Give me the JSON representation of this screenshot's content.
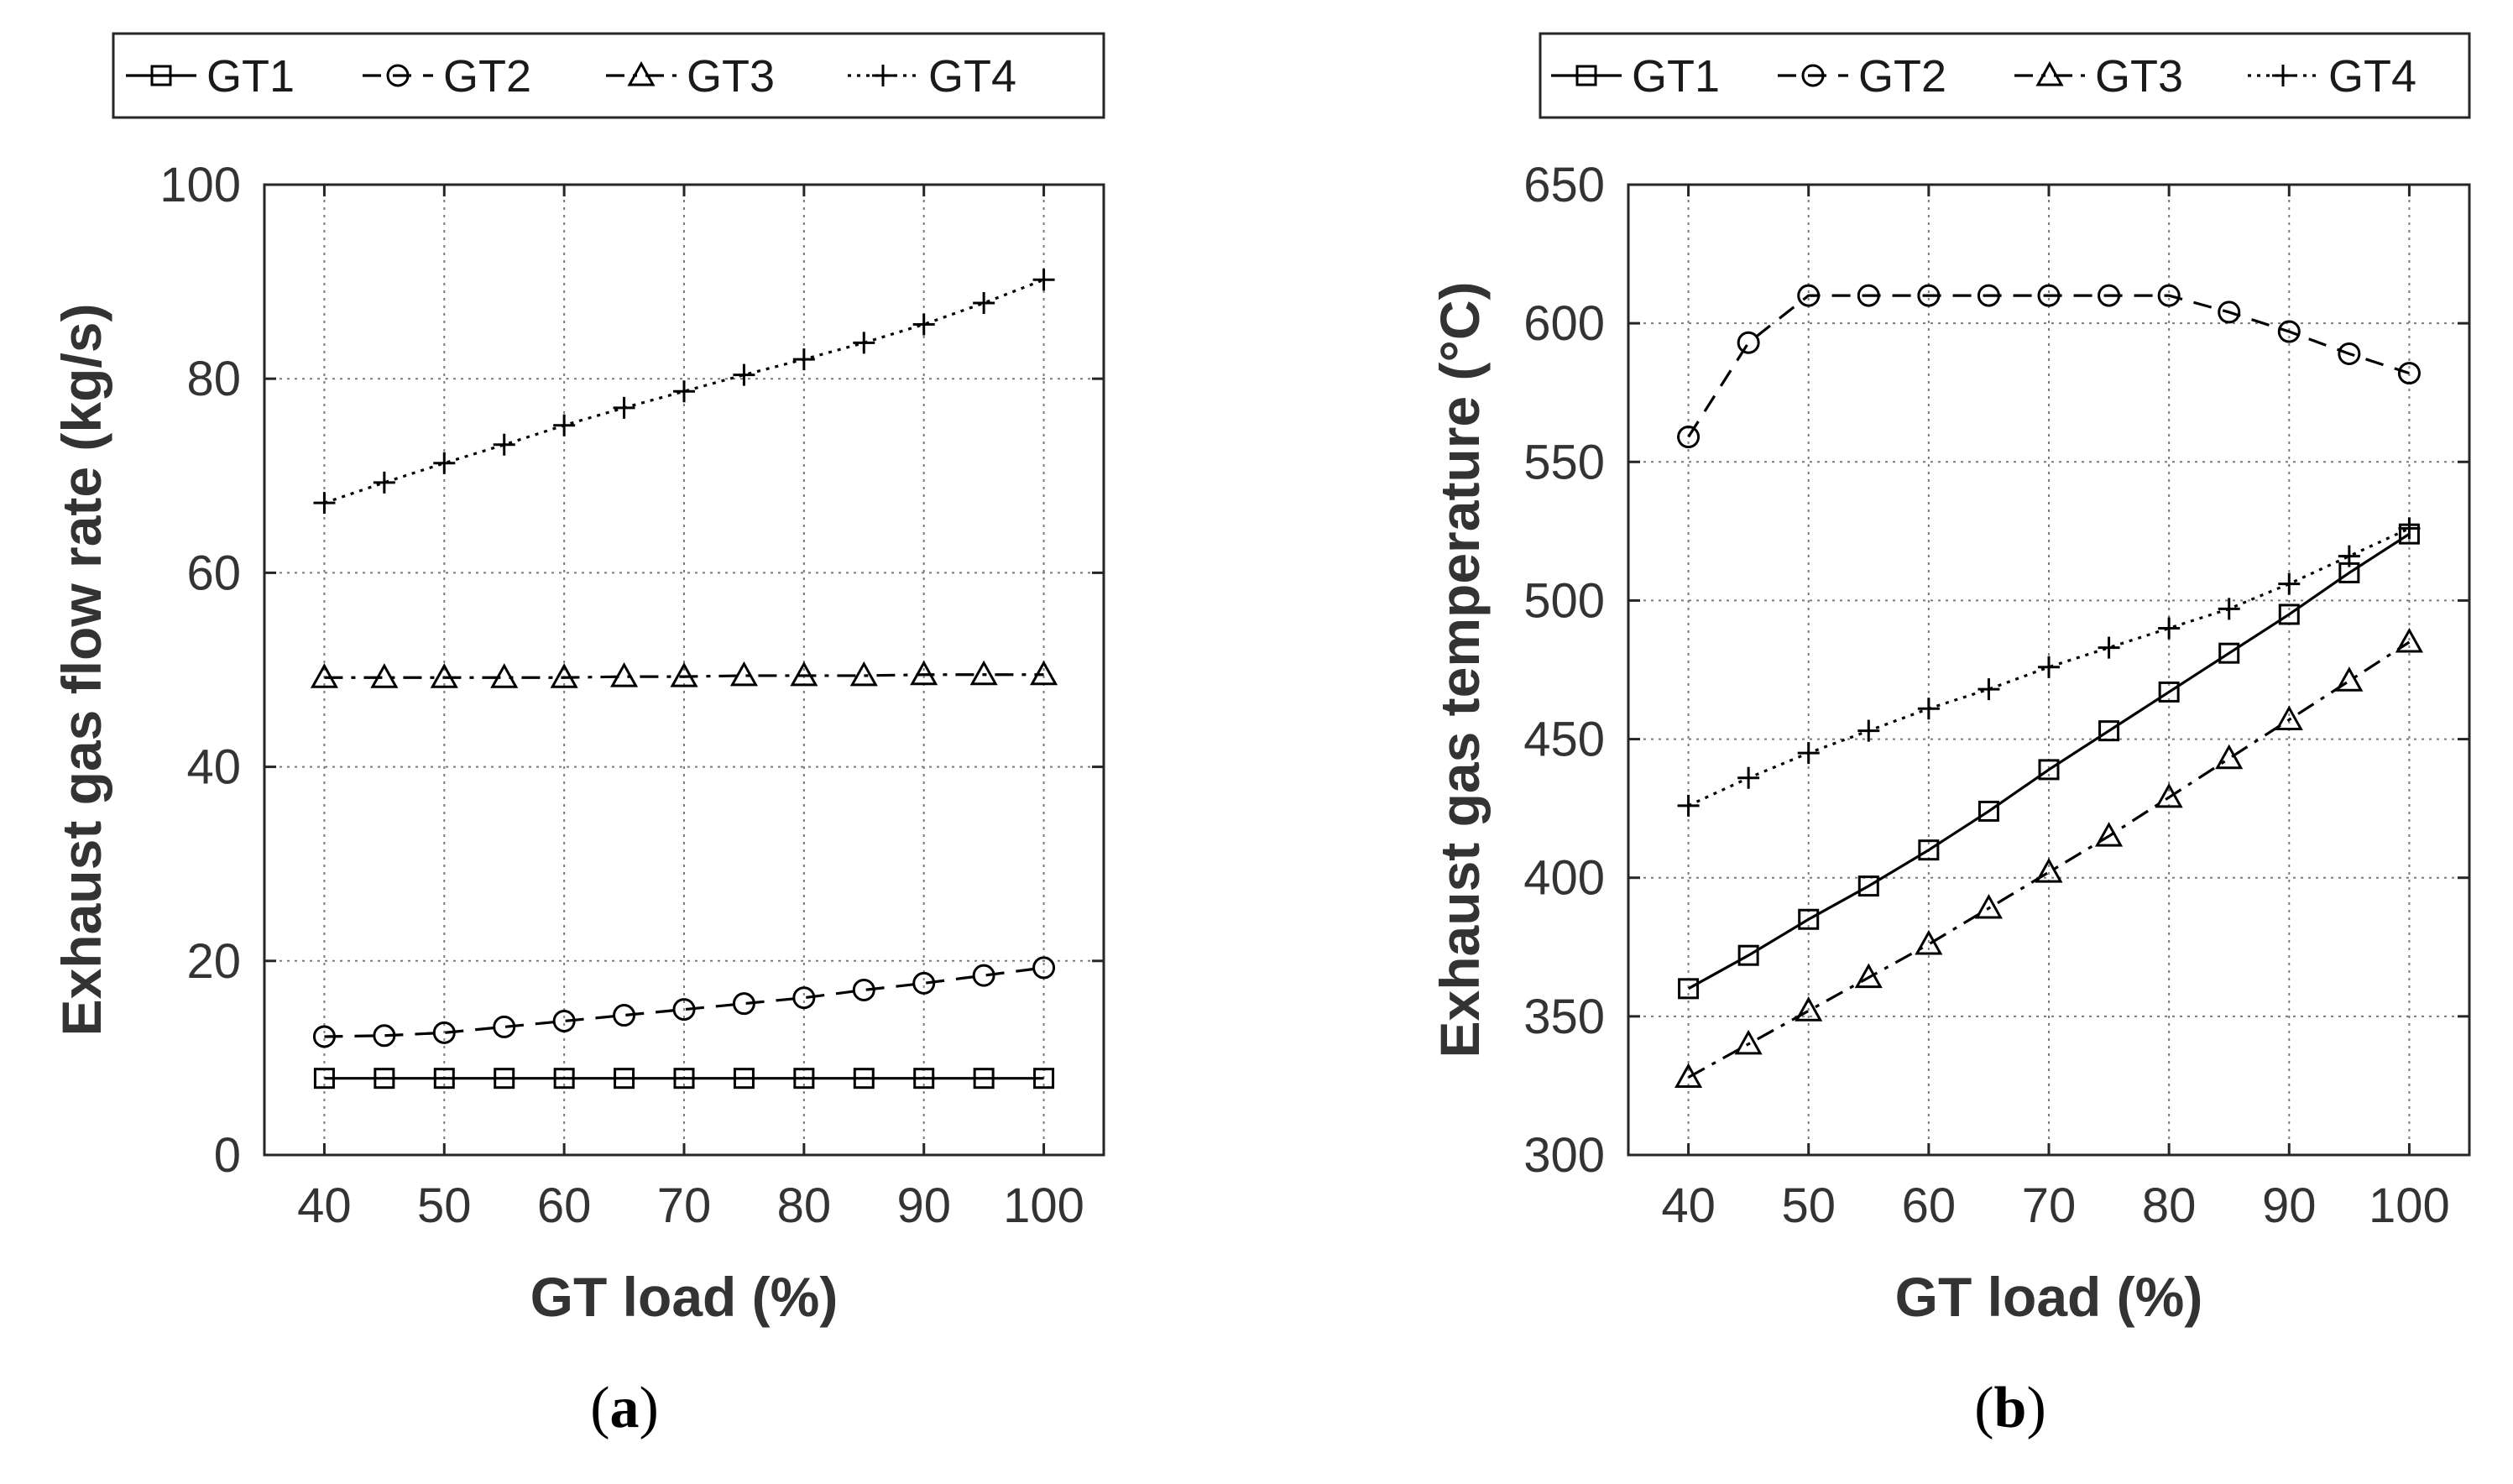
{
  "chart_data": [
    {
      "type": "line",
      "title": "",
      "caption": "(a)",
      "caption_letter": "a",
      "xlabel": "GT load (%)",
      "ylabel": "Exhaust gas flow rate (kg/s)",
      "xlim": [
        35,
        105
      ],
      "ylim": [
        0,
        100
      ],
      "xticks": [
        40,
        50,
        60,
        70,
        80,
        90,
        100
      ],
      "yticks": [
        0,
        20,
        40,
        60,
        80,
        100
      ],
      "grid": true,
      "legend_position": "top-outside",
      "x": [
        40,
        45,
        50,
        55,
        60,
        65,
        70,
        75,
        80,
        85,
        90,
        95,
        100
      ],
      "series": [
        {
          "name": "GT1",
          "marker": "square",
          "line": "solid",
          "values": [
            7.9,
            7.9,
            7.9,
            7.9,
            7.9,
            7.9,
            7.9,
            7.9,
            7.9,
            7.9,
            7.9,
            7.9,
            7.9
          ]
        },
        {
          "name": "GT2",
          "marker": "circle",
          "line": "dashed",
          "values": [
            12.2,
            12.3,
            12.6,
            13.2,
            13.8,
            14.4,
            15.0,
            15.6,
            16.2,
            17.0,
            17.7,
            18.5,
            19.3
          ]
        },
        {
          "name": "GT3",
          "marker": "triangle",
          "line": "dashdot",
          "values": [
            49.2,
            49.2,
            49.2,
            49.2,
            49.2,
            49.3,
            49.3,
            49.4,
            49.4,
            49.4,
            49.5,
            49.5,
            49.5
          ]
        },
        {
          "name": "GT4",
          "marker": "plus",
          "line": "dotted",
          "values": [
            67.2,
            69.3,
            71.3,
            73.2,
            75.2,
            77.0,
            78.7,
            80.4,
            82.0,
            83.7,
            85.6,
            87.8,
            90.2
          ]
        }
      ]
    },
    {
      "type": "line",
      "title": "",
      "caption": "(b)",
      "caption_letter": "b",
      "xlabel": "GT load (%)",
      "ylabel": "Exhaust gas temperature (°C)",
      "xlim": [
        35,
        105
      ],
      "ylim": [
        300,
        650
      ],
      "xticks": [
        40,
        50,
        60,
        70,
        80,
        90,
        100
      ],
      "yticks": [
        300,
        350,
        400,
        450,
        500,
        550,
        600,
        650
      ],
      "grid": true,
      "legend_position": "top-outside",
      "x": [
        40,
        45,
        50,
        55,
        60,
        65,
        70,
        75,
        80,
        85,
        90,
        95,
        100
      ],
      "series": [
        {
          "name": "GT1",
          "marker": "square",
          "line": "solid",
          "values": [
            360,
            372,
            385,
            397,
            410,
            424,
            439,
            453,
            467,
            481,
            495,
            510,
            524
          ]
        },
        {
          "name": "GT2",
          "marker": "circle",
          "line": "dashed",
          "values": [
            559,
            593,
            610,
            610,
            610,
            610,
            610,
            610,
            610,
            604,
            597,
            589,
            582
          ]
        },
        {
          "name": "GT3",
          "marker": "triangle",
          "line": "dashdot",
          "values": [
            328,
            340,
            352,
            364,
            376,
            389,
            402,
            415,
            429,
            443,
            457,
            471,
            485
          ]
        },
        {
          "name": "GT4",
          "marker": "plus",
          "line": "dotted",
          "values": [
            426,
            436,
            445,
            453,
            461,
            468,
            476,
            483,
            490,
            497,
            506,
            516,
            526
          ]
        }
      ]
    }
  ]
}
